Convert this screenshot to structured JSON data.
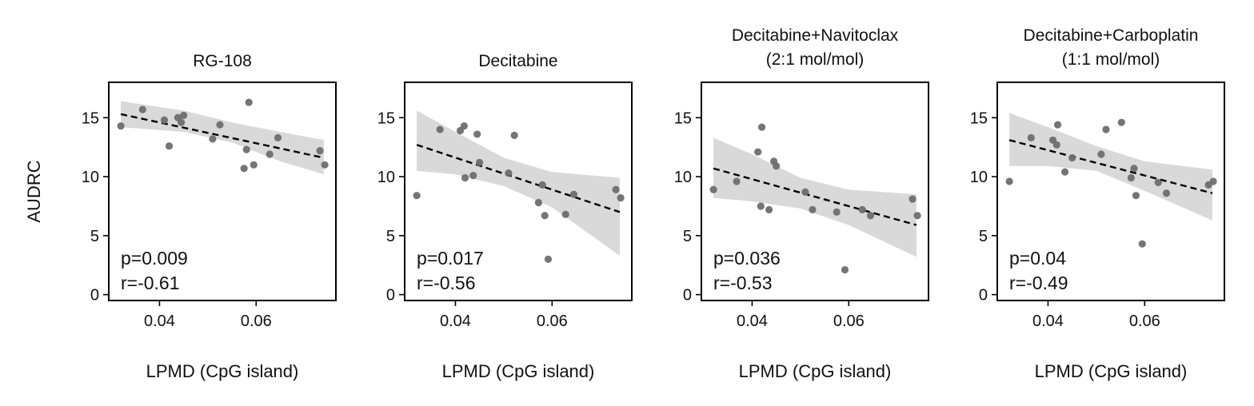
{
  "chart_data": {
    "type": "scatter",
    "shared": {
      "xlabel": "LPMD (CpG island)",
      "ylabel": "AUDRC",
      "xlim": [
        0.0295,
        0.0765
      ],
      "ylim": [
        -0.5,
        18.0
      ],
      "xticks": [
        0.04,
        0.06
      ],
      "xtick_labels": [
        "0.04",
        "0.06"
      ],
      "yticks": [
        0,
        5,
        10,
        15
      ],
      "ytick_labels": [
        "0",
        "5",
        "10",
        "15"
      ],
      "grid": false,
      "point_color": "#6e6e6e",
      "fit_line_color": "#000000",
      "ci_band_color": "#d9d9d9"
    },
    "panels": [
      {
        "title_lines": [
          "RG-108"
        ],
        "p_text": "p=0.009",
        "r_text": "r=-0.61",
        "fit": {
          "x": [
            0.032,
            0.074
          ],
          "y": [
            15.3,
            11.6
          ]
        },
        "ci_upper": [
          [
            0.032,
            16.4
          ],
          [
            0.045,
            15.6
          ],
          [
            0.055,
            14.6
          ],
          [
            0.065,
            13.8
          ],
          [
            0.074,
            13.1
          ]
        ],
        "ci_lower": [
          [
            0.032,
            14.2
          ],
          [
            0.045,
            13.8
          ],
          [
            0.055,
            12.9
          ],
          [
            0.065,
            11.3
          ],
          [
            0.074,
            10.2
          ]
        ],
        "points": [
          {
            "x": 0.032,
            "y": 14.3
          },
          {
            "x": 0.0365,
            "y": 15.7
          },
          {
            "x": 0.041,
            "y": 14.8
          },
          {
            "x": 0.042,
            "y": 12.6
          },
          {
            "x": 0.0438,
            "y": 15.0
          },
          {
            "x": 0.0445,
            "y": 14.6
          },
          {
            "x": 0.045,
            "y": 15.2
          },
          {
            "x": 0.051,
            "y": 13.2
          },
          {
            "x": 0.0525,
            "y": 14.4
          },
          {
            "x": 0.0575,
            "y": 10.7
          },
          {
            "x": 0.058,
            "y": 12.3
          },
          {
            "x": 0.0585,
            "y": 16.3
          },
          {
            "x": 0.0595,
            "y": 11.0
          },
          {
            "x": 0.0628,
            "y": 11.9
          },
          {
            "x": 0.0645,
            "y": 13.3
          },
          {
            "x": 0.0732,
            "y": 12.2
          },
          {
            "x": 0.0742,
            "y": 11.0
          }
        ]
      },
      {
        "title_lines": [
          "Decitabine"
        ],
        "p_text": "p=0.017",
        "r_text": "r=-0.56",
        "fit": {
          "x": [
            0.032,
            0.074
          ],
          "y": [
            12.7,
            7.0
          ]
        },
        "ci_upper": [
          [
            0.032,
            15.6
          ],
          [
            0.04,
            13.8
          ],
          [
            0.05,
            11.6
          ],
          [
            0.06,
            10.4
          ],
          [
            0.074,
            9.9
          ]
        ],
        "ci_lower": [
          [
            0.032,
            10.5
          ],
          [
            0.04,
            10.2
          ],
          [
            0.05,
            9.2
          ],
          [
            0.06,
            7.4
          ],
          [
            0.074,
            3.3
          ]
        ],
        "points": [
          {
            "x": 0.032,
            "y": 8.4
          },
          {
            "x": 0.0368,
            "y": 14.0
          },
          {
            "x": 0.041,
            "y": 13.9
          },
          {
            "x": 0.0418,
            "y": 14.3
          },
          {
            "x": 0.042,
            "y": 9.9
          },
          {
            "x": 0.0437,
            "y": 10.1
          },
          {
            "x": 0.0445,
            "y": 13.6
          },
          {
            "x": 0.045,
            "y": 11.2
          },
          {
            "x": 0.051,
            "y": 10.3
          },
          {
            "x": 0.0522,
            "y": 13.5
          },
          {
            "x": 0.0572,
            "y": 7.8
          },
          {
            "x": 0.058,
            "y": 9.3
          },
          {
            "x": 0.0585,
            "y": 6.7
          },
          {
            "x": 0.0592,
            "y": 3.0
          },
          {
            "x": 0.0628,
            "y": 6.8
          },
          {
            "x": 0.0645,
            "y": 8.5
          },
          {
            "x": 0.0732,
            "y": 8.9
          },
          {
            "x": 0.0742,
            "y": 8.2
          }
        ]
      },
      {
        "title_lines": [
          "Decitabine+Navitoclax",
          "(2:1 mol/mol)"
        ],
        "p_text": "p=0.036",
        "r_text": "r=-0.53",
        "fit": {
          "x": [
            0.032,
            0.074
          ],
          "y": [
            10.7,
            5.9
          ]
        },
        "ci_upper": [
          [
            0.032,
            13.3
          ],
          [
            0.04,
            11.9
          ],
          [
            0.05,
            9.9
          ],
          [
            0.06,
            8.9
          ],
          [
            0.074,
            8.5
          ]
        ],
        "ci_lower": [
          [
            0.032,
            8.2
          ],
          [
            0.04,
            7.9
          ],
          [
            0.05,
            7.3
          ],
          [
            0.06,
            5.9
          ],
          [
            0.074,
            3.2
          ]
        ],
        "points": [
          {
            "x": 0.032,
            "y": 8.9
          },
          {
            "x": 0.0368,
            "y": 9.6
          },
          {
            "x": 0.0412,
            "y": 12.1
          },
          {
            "x": 0.0418,
            "y": 7.5
          },
          {
            "x": 0.042,
            "y": 14.2
          },
          {
            "x": 0.0435,
            "y": 7.2
          },
          {
            "x": 0.0445,
            "y": 11.3
          },
          {
            "x": 0.045,
            "y": 10.9
          },
          {
            "x": 0.051,
            "y": 8.7
          },
          {
            "x": 0.0525,
            "y": 7.2
          },
          {
            "x": 0.0575,
            "y": 7.0
          },
          {
            "x": 0.0592,
            "y": 2.1
          },
          {
            "x": 0.0628,
            "y": 7.2
          },
          {
            "x": 0.0645,
            "y": 6.7
          },
          {
            "x": 0.0732,
            "y": 8.1
          },
          {
            "x": 0.0742,
            "y": 6.7
          }
        ]
      },
      {
        "title_lines": [
          "Decitabine+Carboplatin",
          "(1:1 mol/mol)"
        ],
        "p_text": "p=0.04",
        "r_text": "r=-0.49",
        "fit": {
          "x": [
            0.032,
            0.074
          ],
          "y": [
            13.1,
            8.6
          ]
        },
        "ci_upper": [
          [
            0.032,
            15.4
          ],
          [
            0.04,
            14.2
          ],
          [
            0.05,
            12.6
          ],
          [
            0.06,
            11.3
          ],
          [
            0.074,
            10.6
          ]
        ],
        "ci_lower": [
          [
            0.032,
            10.9
          ],
          [
            0.04,
            10.9
          ],
          [
            0.05,
            10.5
          ],
          [
            0.06,
            8.8
          ],
          [
            0.074,
            6.3
          ]
        ],
        "points": [
          {
            "x": 0.032,
            "y": 9.6
          },
          {
            "x": 0.0365,
            "y": 13.3
          },
          {
            "x": 0.041,
            "y": 13.1
          },
          {
            "x": 0.0418,
            "y": 12.7
          },
          {
            "x": 0.042,
            "y": 14.4
          },
          {
            "x": 0.0435,
            "y": 10.4
          },
          {
            "x": 0.045,
            "y": 11.6
          },
          {
            "x": 0.051,
            "y": 11.9
          },
          {
            "x": 0.052,
            "y": 14.0
          },
          {
            "x": 0.0552,
            "y": 14.6
          },
          {
            "x": 0.0572,
            "y": 9.9
          },
          {
            "x": 0.0578,
            "y": 10.7
          },
          {
            "x": 0.0582,
            "y": 8.4
          },
          {
            "x": 0.0595,
            "y": 4.3
          },
          {
            "x": 0.0628,
            "y": 9.5
          },
          {
            "x": 0.0645,
            "y": 8.6
          },
          {
            "x": 0.0732,
            "y": 9.3
          },
          {
            "x": 0.0742,
            "y": 9.6
          }
        ]
      }
    ]
  }
}
